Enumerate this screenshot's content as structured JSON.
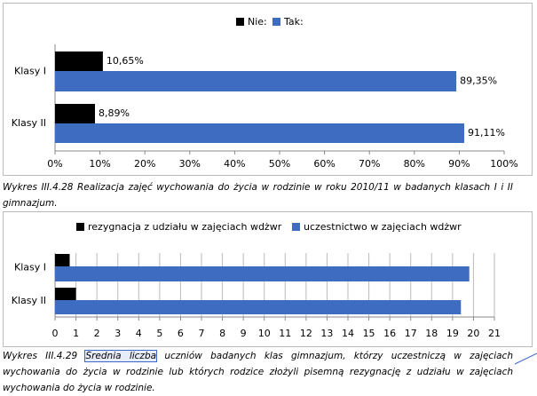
{
  "chart_data": [
    {
      "type": "bar",
      "orientation": "horizontal",
      "categories": [
        "Klasy I",
        "Klasy II"
      ],
      "series": [
        {
          "name": "Nie:",
          "color": "#000000",
          "values": [
            10.65,
            8.89
          ],
          "value_labels": [
            "10,65%",
            "8,89%"
          ]
        },
        {
          "name": "Tak:",
          "color": "#3d6cc0",
          "values": [
            89.35,
            91.11
          ],
          "value_labels": [
            "89,35%",
            "91,11%"
          ]
        }
      ],
      "xlim": [
        0,
        100
      ],
      "xticks": [
        {
          "value": 0,
          "label": "0%"
        },
        {
          "value": 10,
          "label": "10%"
        },
        {
          "value": 20,
          "label": "20%"
        },
        {
          "value": 30,
          "label": "30%"
        },
        {
          "value": 40,
          "label": "40%"
        },
        {
          "value": 50,
          "label": "50%"
        },
        {
          "value": 60,
          "label": "60%"
        },
        {
          "value": 70,
          "label": "70%"
        },
        {
          "value": 80,
          "label": "80%"
        },
        {
          "value": 90,
          "label": "90%"
        },
        {
          "value": 100,
          "label": "100%"
        }
      ],
      "grid": false,
      "legend": "top"
    },
    {
      "type": "bar",
      "orientation": "horizontal",
      "categories": [
        "Klasy I",
        "Klasy II"
      ],
      "series": [
        {
          "name": "rezygnacja z udziału w zajęciach wdżwr",
          "color": "#000000",
          "values": [
            0.7,
            1.0
          ]
        },
        {
          "name": "uczestnictwo w zajęciach wdżwr",
          "color": "#3d6cc0",
          "values": [
            19.8,
            19.4
          ]
        }
      ],
      "xlim": [
        0,
        21
      ],
      "xticks": [
        0,
        1,
        2,
        3,
        4,
        5,
        6,
        7,
        8,
        9,
        10,
        11,
        12,
        13,
        14,
        15,
        16,
        17,
        18,
        19,
        20,
        21
      ],
      "grid": true,
      "legend": "top"
    }
  ],
  "captions": [
    {
      "number": "Wykres III.4.28",
      "text": "Realizacja zajęć wychowania do życia w rodzinie w roku 2010/11 w badanych klasach I i II gimnazjum."
    },
    {
      "number": "Wykres III.4.29",
      "highlight": "Średnia liczba",
      "text": "uczniów badanych klas gimnazjum, którzy uczestniczą w zajęciach wychowania do życia w rodzinie lub których rodzice złożyli pisemną rezygnację z udziału w zajęciach wychowania do życia w rodzinie."
    }
  ]
}
